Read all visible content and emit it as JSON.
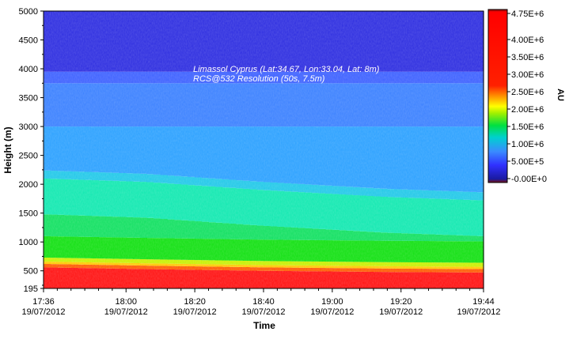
{
  "chart_data": {
    "type": "heatmap",
    "title": "",
    "xlabel": "Time",
    "ylabel": "Height (m)",
    "colorbar_label": "AU",
    "annotations": [
      "Limassol Cyprus (Lat:34.67, Lon:33.04, Lat: 8m)",
      "RCS@532 Resolution (50s, 7.5m)"
    ],
    "x_range_minutes": [
      0,
      128
    ],
    "x_ticks": [
      {
        "minutes": 0,
        "time": "17:36",
        "date": "19/07/2012"
      },
      {
        "minutes": 24,
        "time": "18:00",
        "date": "19/07/2012"
      },
      {
        "minutes": 44,
        "time": "18:20",
        "date": "19/07/2012"
      },
      {
        "minutes": 64,
        "time": "18:40",
        "date": "19/07/2012"
      },
      {
        "minutes": 84,
        "time": "19:00",
        "date": "19/07/2012"
      },
      {
        "minutes": 104,
        "time": "19:20",
        "date": "19/07/2012"
      },
      {
        "minutes": 128,
        "time": "19:44",
        "date": "19/07/2012"
      }
    ],
    "ylim": [
      195,
      5000
    ],
    "y_ticks": [
      195,
      500,
      1000,
      1500,
      2000,
      2500,
      3000,
      3500,
      4000,
      4500,
      5000
    ],
    "y_tick_labels": [
      "195",
      "500",
      "1000",
      "1500",
      "2000",
      "2500",
      "3000",
      "3500",
      "4000",
      "4500",
      "5000"
    ],
    "colorbar_range": [
      0,
      4750000
    ],
    "colorbar_ticks": [
      0,
      500000,
      1000000,
      1500000,
      2000000,
      2500000,
      3000000,
      3500000,
      4000000,
      4750000
    ],
    "colorbar_tick_labels": [
      "-0.00E+0",
      "5.00E+5",
      "1.00E+6",
      "1.50E+6",
      "2.00E+6",
      "2.50E+6",
      "3.00E+6",
      "3.50E+6",
      "4.00E+6",
      "4.75E+6"
    ],
    "layers": {
      "surface_layer_top_m": [
        {
          "minutes": 0,
          "height": 620
        },
        {
          "minutes": 30,
          "height": 590
        },
        {
          "minutes": 64,
          "height": 560
        },
        {
          "minutes": 100,
          "height": 540
        },
        {
          "minutes": 128,
          "height": 530
        }
      ],
      "aerosol_layer_top_m": [
        {
          "minutes": 0,
          "height": 2180
        },
        {
          "minutes": 30,
          "height": 2120
        },
        {
          "minutes": 64,
          "height": 1980
        },
        {
          "minutes": 100,
          "height": 1860
        },
        {
          "minutes": 128,
          "height": 1800
        }
      ]
    },
    "color_scale": [
      "#7a1010",
      "#ff0000",
      "#ff8000",
      "#ffff00",
      "#00e000",
      "#00c8c8",
      "#2a90ff",
      "#3a4aff",
      "#2020c8"
    ]
  }
}
